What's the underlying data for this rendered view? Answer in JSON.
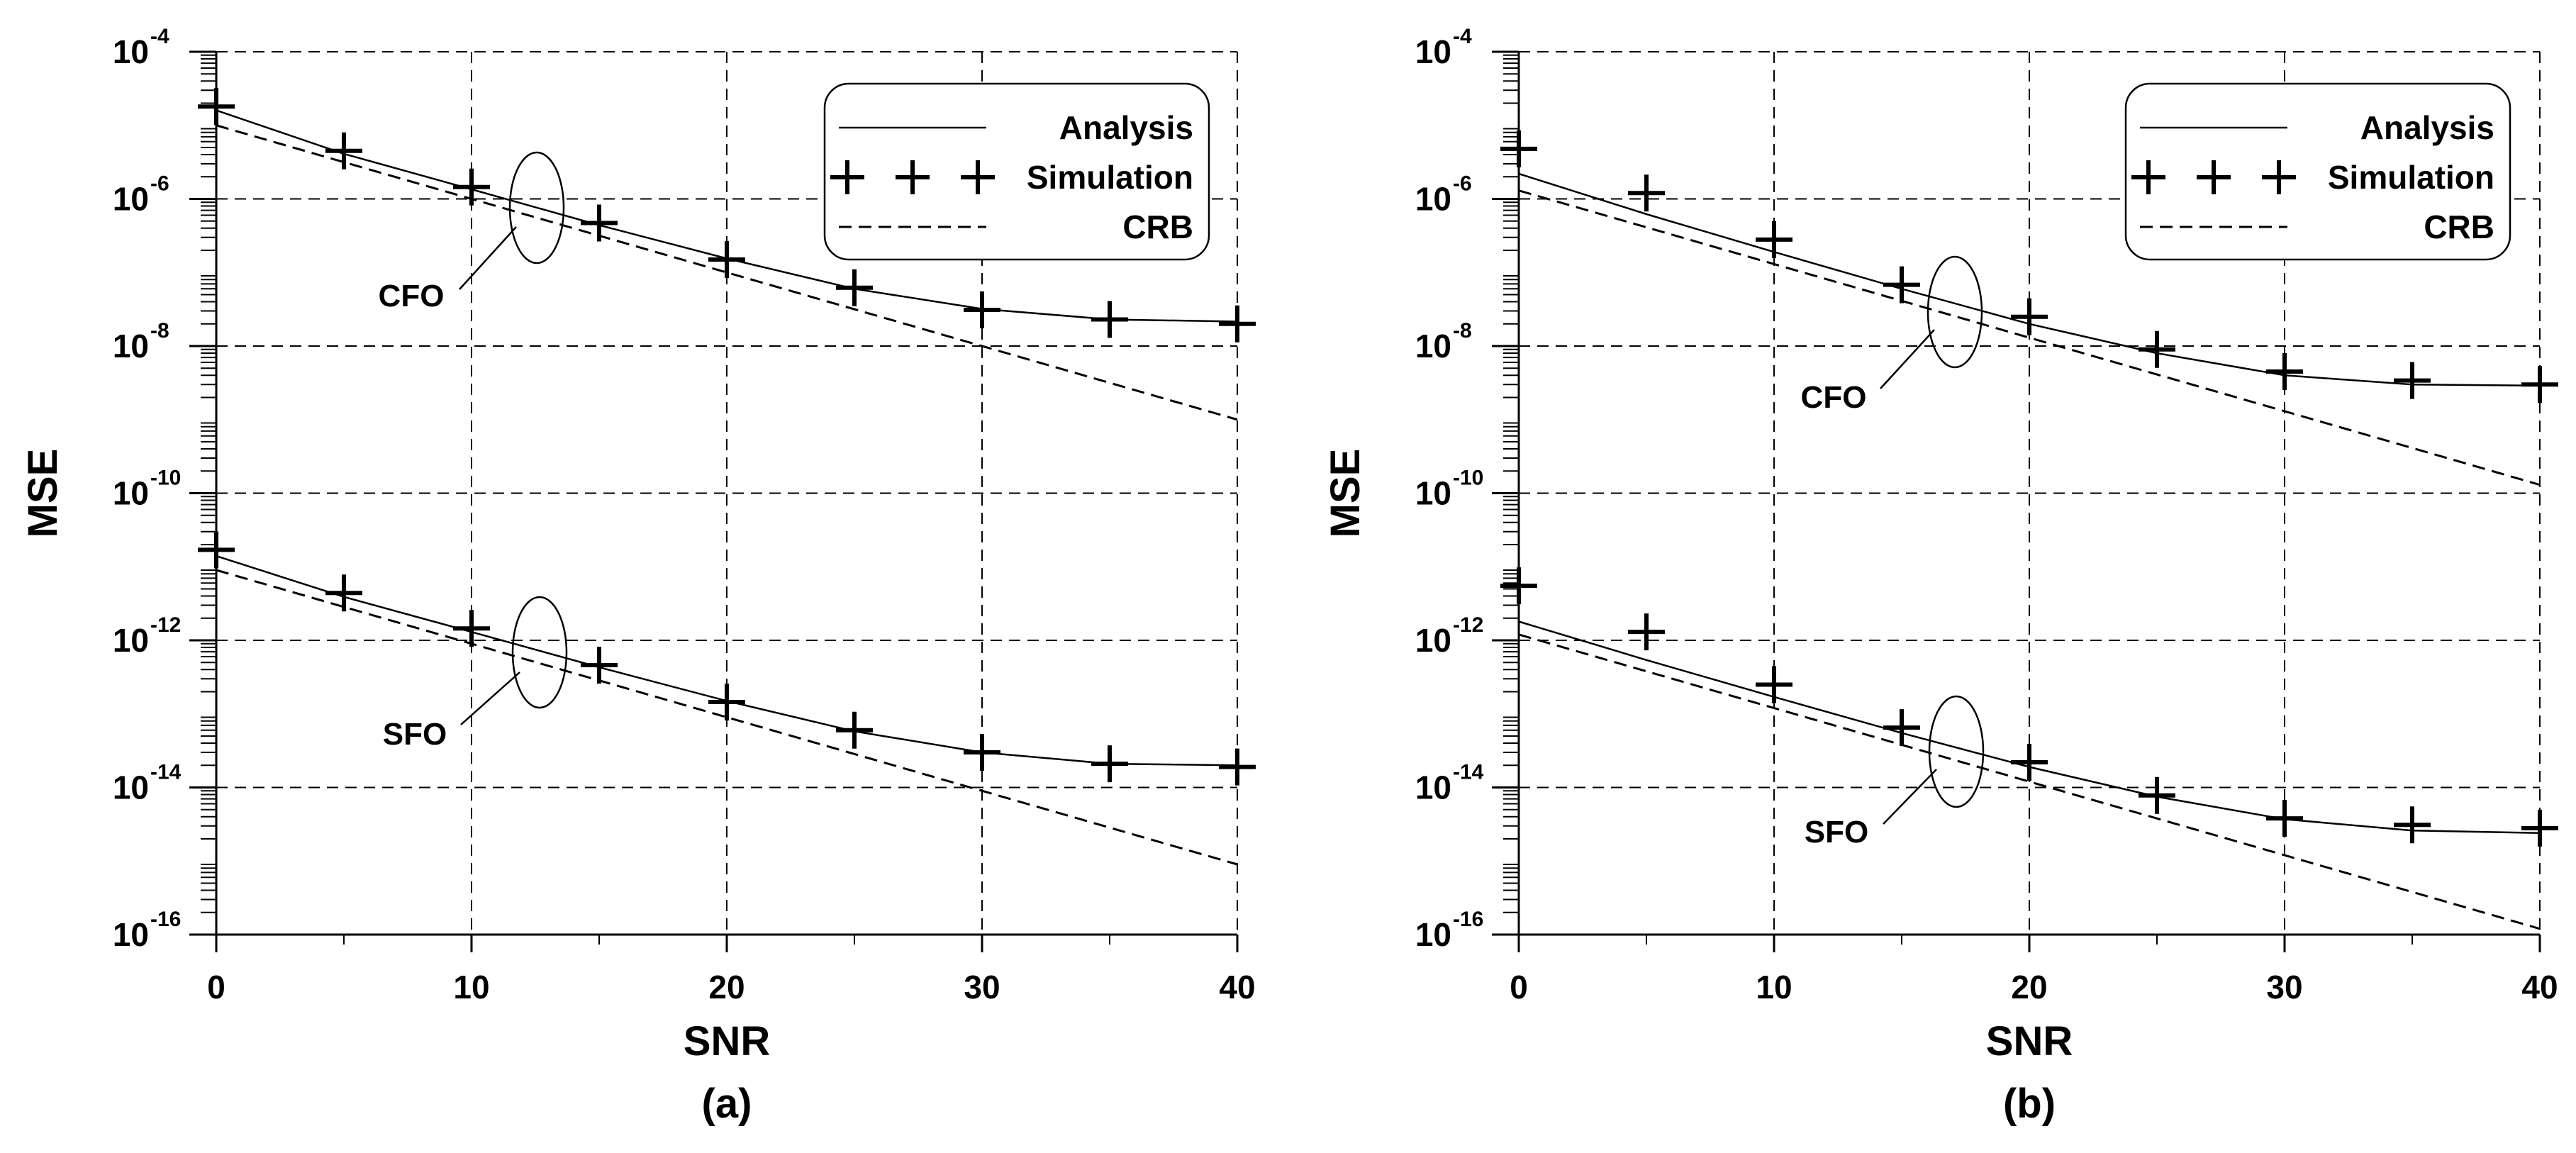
{
  "chart_data": [
    {
      "type": "line",
      "panel_label": "(a)",
      "xlabel": "SNR",
      "ylabel": "MSE",
      "xlim": [
        0,
        40
      ],
      "ylim_log10": [
        -16,
        -4
      ],
      "x_ticks": [
        0,
        10,
        20,
        30,
        40
      ],
      "y_ticks": [
        {
          "base": "10",
          "exp": "-4",
          "value": 0.0001
        },
        {
          "base": "10",
          "exp": "-6",
          "value": 1e-06
        },
        {
          "base": "10",
          "exp": "-8",
          "value": 1e-08
        },
        {
          "base": "10",
          "exp": "-10",
          "value": 1e-10
        },
        {
          "base": "10",
          "exp": "-12",
          "value": 1e-12
        },
        {
          "base": "10",
          "exp": "-14",
          "value": 1e-14
        },
        {
          "base": "10",
          "exp": "-16",
          "value": 1e-16
        }
      ],
      "grid": true,
      "legend": {
        "position": "top-right",
        "entries": [
          {
            "label": "Analysis",
            "style": "solid"
          },
          {
            "label": "Simulation",
            "style": "markers"
          },
          {
            "label": "CRB",
            "style": "dashed"
          }
        ]
      },
      "groups": [
        {
          "name": "CFO",
          "annotation": "CFO",
          "annotation_anchor_x": 12.5,
          "analysis": {
            "x": [
              0,
              5,
              10,
              15,
              20,
              25,
              30,
              35,
              40
            ],
            "y": [
              1.6e-05,
              4.1e-06,
              1.35e-06,
              4.4e-07,
              1.55e-07,
              6e-08,
              3.2e-08,
              2.3e-08,
              2.15e-08
            ]
          },
          "simulation": {
            "x": [
              0,
              5,
              10,
              15,
              20,
              25,
              30,
              35,
              40
            ],
            "y": [
              1.8e-05,
              4.5e-06,
              1.45e-06,
              4.7e-07,
              1.5e-07,
              6.2e-08,
              3.1e-08,
              2.3e-08,
              2e-08
            ]
          },
          "crb": {
            "x": [
              0,
              40
            ],
            "y": [
              1e-05,
              1e-09
            ]
          }
        },
        {
          "name": "SFO",
          "annotation": "SFO",
          "annotation_anchor_x": 12.5,
          "analysis": {
            "x": [
              0,
              5,
              10,
              15,
              20,
              25,
              30,
              35,
              40
            ],
            "y": [
              1.4e-11,
              3.9e-12,
              1.3e-12,
              4.3e-13,
              1.5e-13,
              5.8e-14,
              3e-14,
              2.1e-14,
              2e-14
            ]
          },
          "simulation": {
            "x": [
              0,
              5,
              10,
              15,
              20,
              25,
              30,
              35,
              40
            ],
            "y": [
              1.7e-11,
              4.4e-12,
              1.45e-12,
              4.6e-13,
              1.45e-13,
              6e-14,
              3e-14,
              2.1e-14,
              1.9e-14
            ]
          },
          "crb": {
            "x": [
              0,
              40
            ],
            "y": [
              9e-12,
              9e-16
            ]
          }
        }
      ]
    },
    {
      "type": "line",
      "panel_label": "(b)",
      "xlabel": "SNR",
      "ylabel": "MSE",
      "xlim": [
        0,
        40
      ],
      "ylim_log10": [
        -16,
        -4
      ],
      "x_ticks": [
        0,
        10,
        20,
        30,
        40
      ],
      "y_ticks": [
        {
          "base": "10",
          "exp": "-4",
          "value": 0.0001
        },
        {
          "base": "10",
          "exp": "-6",
          "value": 1e-06
        },
        {
          "base": "10",
          "exp": "-8",
          "value": 1e-08
        },
        {
          "base": "10",
          "exp": "-10",
          "value": 1e-10
        },
        {
          "base": "10",
          "exp": "-12",
          "value": 1e-12
        },
        {
          "base": "10",
          "exp": "-14",
          "value": 1e-14
        },
        {
          "base": "10",
          "exp": "-16",
          "value": 1e-16
        }
      ],
      "grid": true,
      "legend": {
        "position": "top-right",
        "entries": [
          {
            "label": "Analysis",
            "style": "solid"
          },
          {
            "label": "Simulation",
            "style": "markers"
          },
          {
            "label": "CRB",
            "style": "dashed"
          }
        ]
      },
      "groups": [
        {
          "name": "CFO",
          "annotation": "CFO",
          "annotation_anchor_x": 17.5,
          "analysis": {
            "x": [
              0,
              5,
              10,
              15,
              20,
              25,
              30,
              35,
              40
            ],
            "y": [
              2.2e-06,
              6.2e-07,
              1.9e-07,
              6e-08,
              2e-08,
              8e-09,
              4e-09,
              3e-09,
              2.9e-09
            ]
          },
          "simulation": {
            "x": [
              0,
              5,
              10,
              15,
              20,
              25,
              30,
              35,
              40
            ],
            "y": [
              4.8e-06,
              1.2e-06,
              2.8e-07,
              6.8e-08,
              2.5e-08,
              9e-09,
              4.5e-09,
              3.4e-09,
              3e-09
            ]
          },
          "crb": {
            "x": [
              0,
              40
            ],
            "y": [
              1.3e-06,
              1.3e-10
            ]
          }
        },
        {
          "name": "SFO",
          "annotation": "SFO",
          "annotation_anchor_x": 17.5,
          "analysis": {
            "x": [
              0,
              5,
              10,
              15,
              20,
              25,
              30,
              35,
              40
            ],
            "y": [
              1.8e-12,
              5.4e-13,
              1.7e-13,
              5.5e-14,
              1.9e-14,
              7.5e-15,
              3.7e-15,
              2.6e-15,
              2.4e-15
            ]
          },
          "simulation": {
            "x": [
              0,
              5,
              10,
              15,
              20,
              25,
              30,
              35,
              40
            ],
            "y": [
              5.5e-12,
              1.3e-12,
              2.5e-13,
              6.5e-14,
              2.2e-14,
              7.8e-15,
              3.8e-15,
              3.1e-15,
              2.8e-15
            ]
          },
          "crb": {
            "x": [
              0,
              40
            ],
            "y": [
              1.2e-12,
              1.2e-16
            ]
          }
        }
      ]
    }
  ]
}
